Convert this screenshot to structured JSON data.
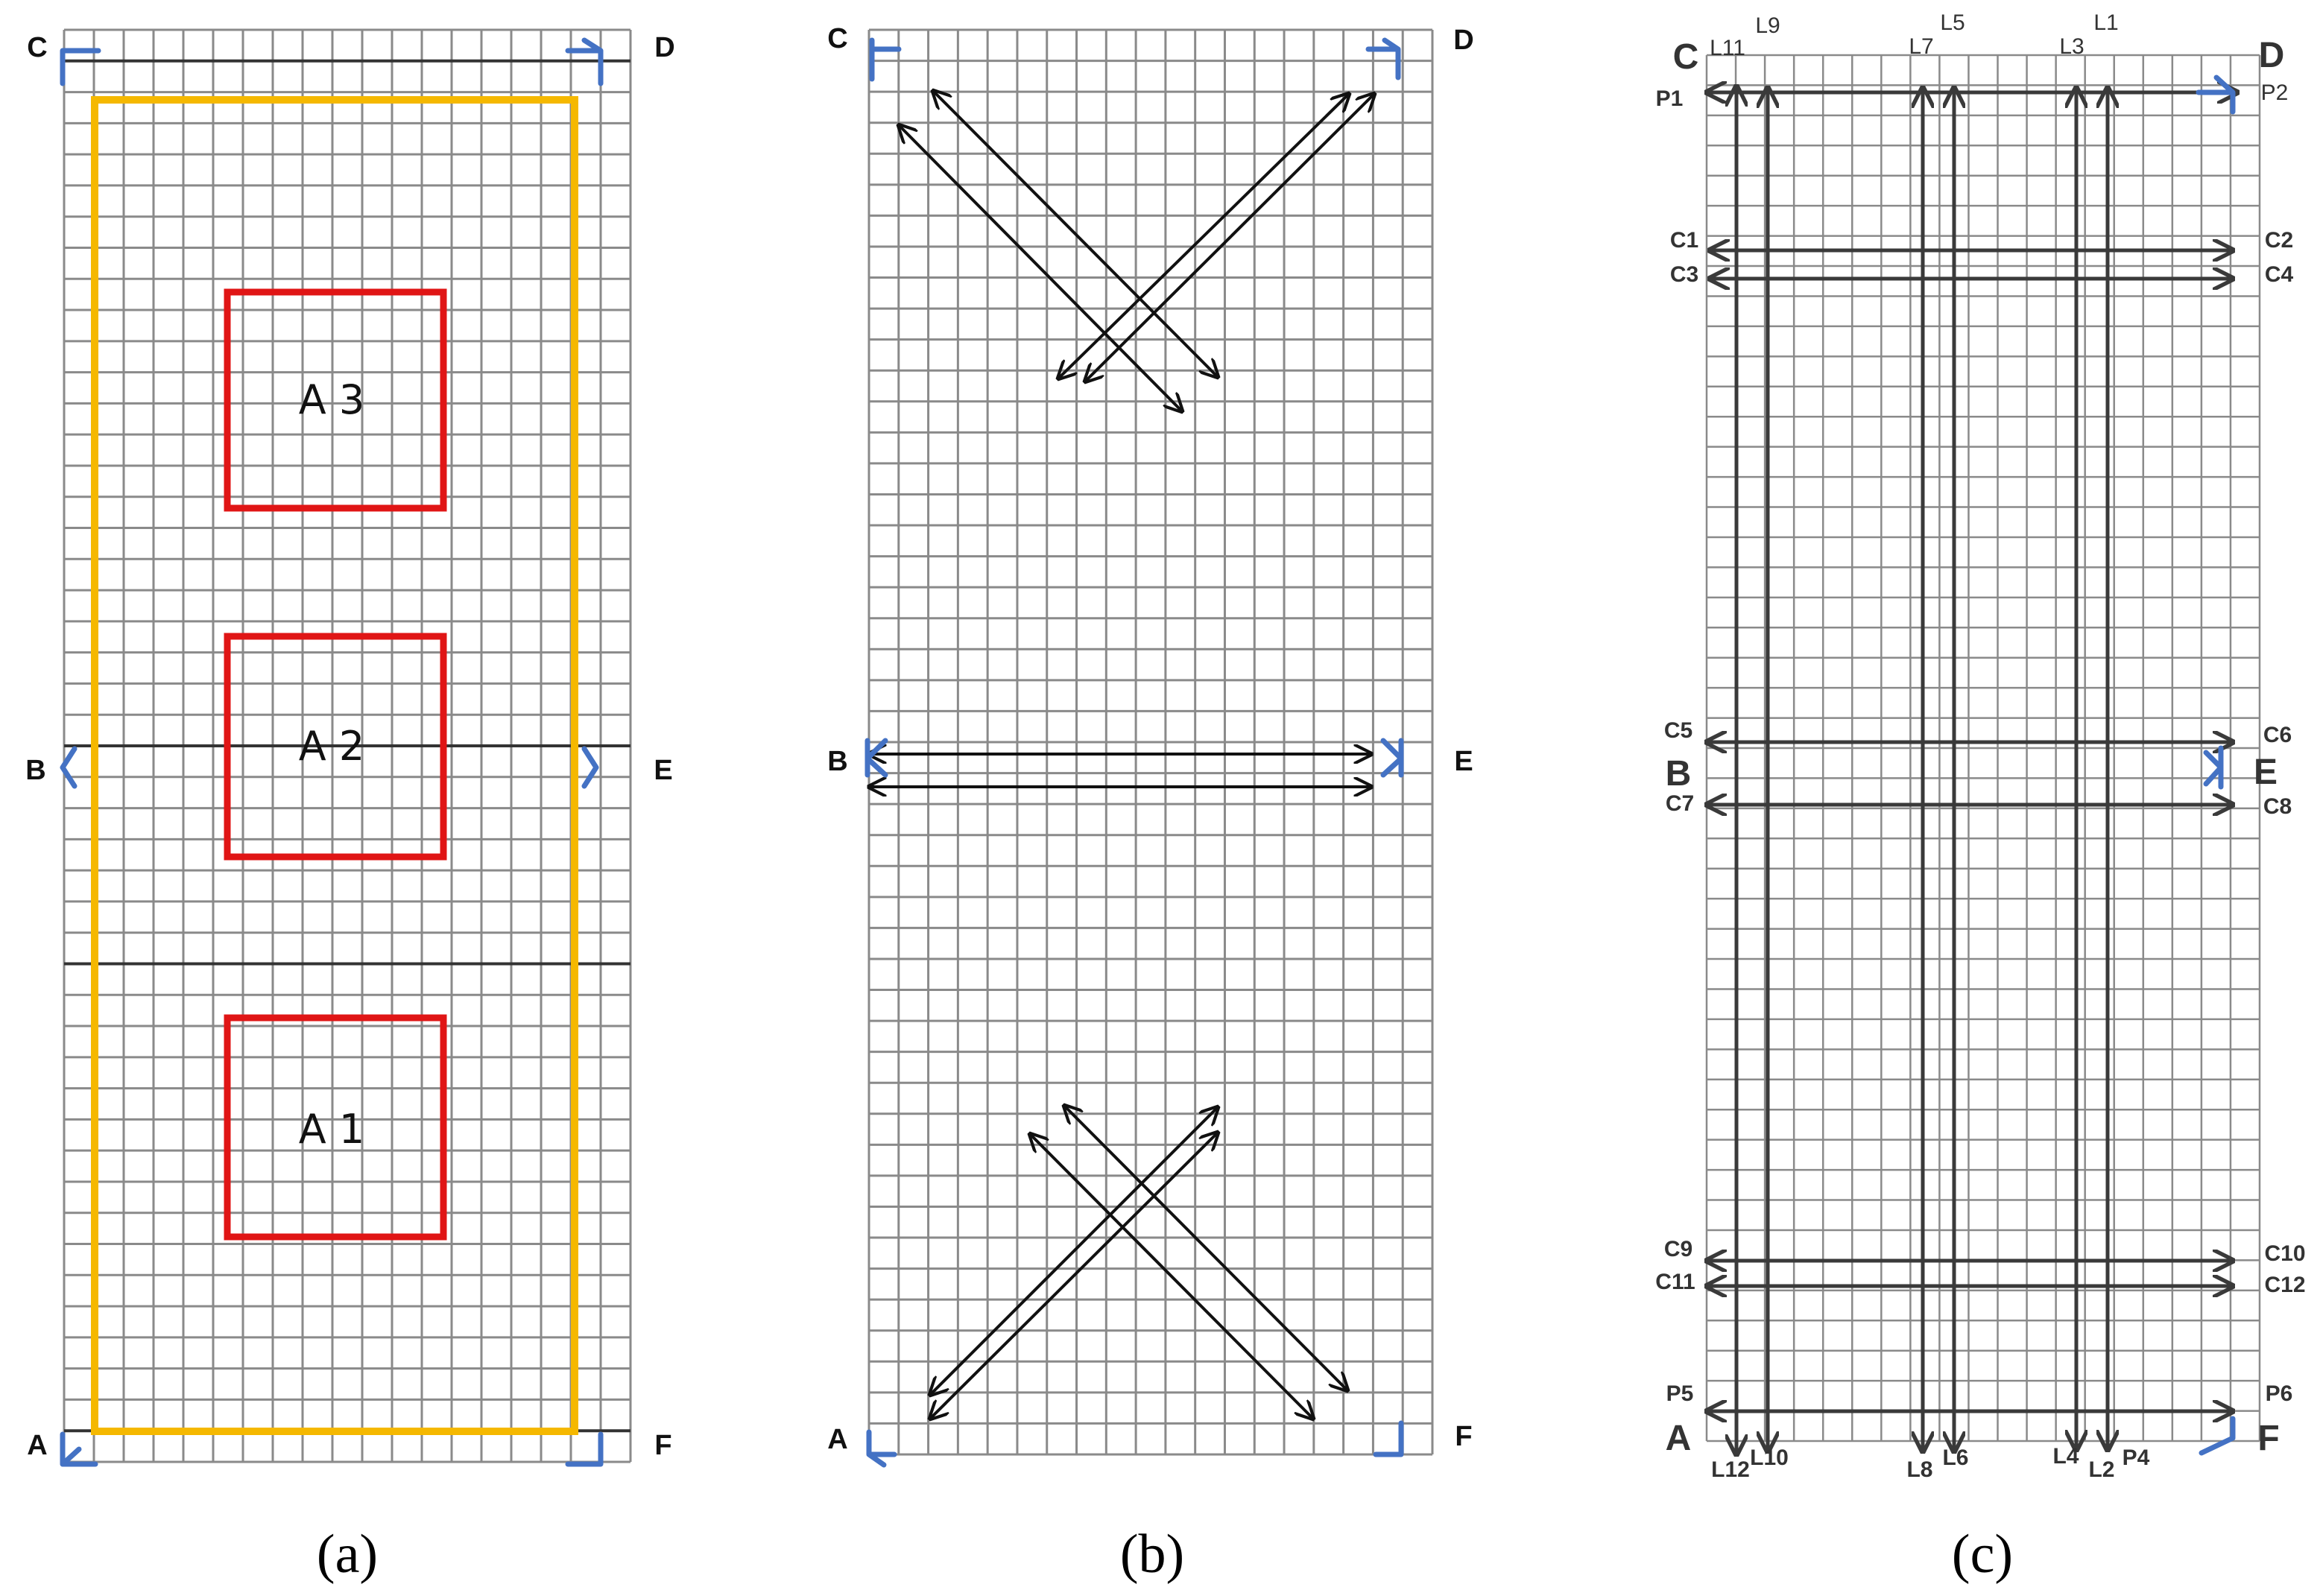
{
  "panels": [
    {
      "id": "a",
      "caption": "(a)",
      "corners": {
        "C": "C",
        "D": "D",
        "B": "B",
        "E": "E",
        "A": "A",
        "F": "F"
      },
      "areas": [
        "A 1",
        "A 2",
        "A 3"
      ]
    },
    {
      "id": "b",
      "caption": "(b)",
      "corners": {
        "C": "C",
        "D": "D",
        "B": "B",
        "E": "E",
        "A": "A",
        "F": "F"
      }
    },
    {
      "id": "c",
      "caption": "(c)",
      "corners": {
        "C": "C",
        "D": "D",
        "B": "B",
        "E": "E",
        "A": "A",
        "F": "F"
      },
      "top_line_labels": [
        "L11",
        "L9",
        "L7",
        "L5",
        "L3",
        "L1"
      ],
      "bottom_line_labels": [
        "L12",
        "L10",
        "L8",
        "L6",
        "L4",
        "L2",
        "P4"
      ],
      "left_labels": [
        "P1",
        "C1",
        "C3",
        "C5",
        "C7",
        "C9",
        "C11",
        "P5"
      ],
      "right_labels": [
        "P2",
        "C2",
        "C4",
        "C6",
        "C8",
        "C10",
        "C12",
        "P6"
      ]
    }
  ],
  "colors": {
    "grid": "#8a8a8a",
    "grid_dark": "#333333",
    "yellow_frame": "#f5b800",
    "red_area": "#e01515",
    "blue_marker": "#4472c4",
    "arrow": "#111111",
    "arrow_c": "#3a3a3a"
  }
}
